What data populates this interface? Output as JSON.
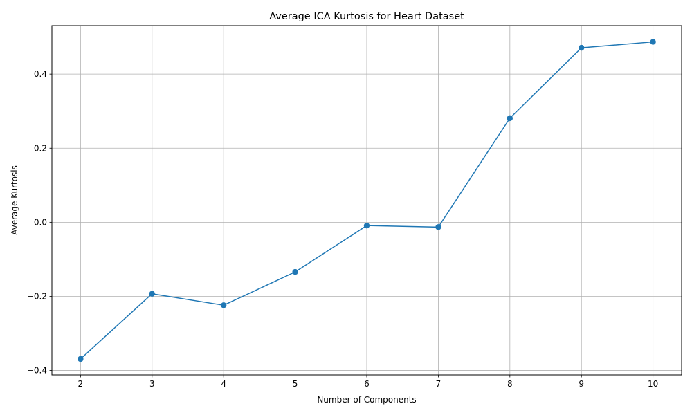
{
  "chart_data": {
    "type": "line",
    "title": "Average ICA Kurtosis for Heart Dataset",
    "xlabel": "Number of Components",
    "ylabel": "Average Kurtosis",
    "x": [
      2,
      3,
      4,
      5,
      6,
      7,
      8,
      9,
      10
    ],
    "series": [
      {
        "values": [
          -0.369,
          -0.193,
          -0.224,
          -0.134,
          -0.009,
          -0.013,
          0.281,
          0.471,
          0.487
        ]
      }
    ],
    "xticks": [
      2,
      3,
      4,
      5,
      6,
      7,
      8,
      9,
      10
    ],
    "xtick_labels": [
      "2",
      "3",
      "4",
      "5",
      "6",
      "7",
      "8",
      "9",
      "10"
    ],
    "yticks": [
      -0.4,
      -0.2,
      0.0,
      0.2,
      0.4
    ],
    "ytick_labels": [
      "−0.4",
      "−0.2",
      "0.0",
      "0.2",
      "0.4"
    ],
    "xlim": [
      1.6,
      10.4
    ],
    "ylim": [
      -0.412,
      0.531
    ],
    "grid": true,
    "marker": "circle",
    "colors": {
      "line": "#1f77b4",
      "grid": "#b0b0b0",
      "axis": "#000000"
    }
  }
}
